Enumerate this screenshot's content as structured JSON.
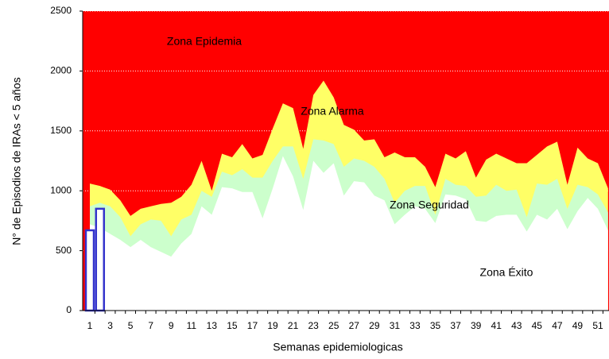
{
  "chart_data": {
    "type": "area",
    "x_label": "Semanas epidemiologicas",
    "y_label": "N° de Episodios de IRAs < 5 años",
    "annotations": [
      "Zona Epidemia",
      "Zona Alarma",
      "Zona Seguridad",
      "Zona Éxito"
    ],
    "background_color": "#ff0000",
    "categories": [
      "1",
      null,
      "3",
      null,
      "5",
      null,
      "7",
      null,
      "9",
      null,
      "11",
      null,
      "13",
      null,
      "15",
      null,
      "17",
      null,
      "19",
      null,
      "21",
      null,
      "23",
      null,
      "25",
      null,
      "27",
      null,
      "29",
      null,
      "31",
      null,
      "33",
      null,
      "35",
      null,
      "37",
      null,
      "39",
      null,
      "41",
      null,
      "43",
      null,
      "45",
      null,
      "47",
      null,
      "49",
      null,
      "51",
      null
    ],
    "series": [
      {
        "color": "#ffff66",
        "values": [
          1060,
          1040,
          1010,
          920,
          790,
          850,
          870,
          890,
          900,
          950,
          1050,
          1250,
          1000,
          1310,
          1280,
          1390,
          1270,
          1300,
          1520,
          1730,
          1690,
          1350,
          1800,
          1920,
          1780,
          1550,
          1510,
          1420,
          1430,
          1280,
          1320,
          1280,
          1280,
          1200,
          1030,
          1310,
          1270,
          1330,
          1110,
          1260,
          1310,
          1270,
          1230,
          1230,
          1300,
          1370,
          1410,
          1050,
          1360,
          1270,
          1230,
          1020
        ]
      },
      {
        "color": "#ccffcc",
        "values": [
          870,
          900,
          870,
          780,
          620,
          720,
          760,
          750,
          620,
          760,
          800,
          1000,
          950,
          1160,
          1130,
          1180,
          1110,
          1110,
          1250,
          1370,
          1370,
          1100,
          1430,
          1420,
          1390,
          1200,
          1270,
          1250,
          1200,
          1100,
          900,
          1000,
          1040,
          1040,
          800,
          1100,
          1050,
          1040,
          950,
          960,
          1050,
          1000,
          1010,
          780,
          1060,
          1050,
          1100,
          850,
          1050,
          1030,
          970,
          820
        ]
      },
      {
        "color": "#ffffff",
        "values": [
          720,
          690,
          640,
          590,
          530,
          590,
          530,
          490,
          450,
          560,
          640,
          870,
          800,
          1030,
          1020,
          990,
          990,
          770,
          1020,
          1290,
          1120,
          840,
          1250,
          1150,
          1230,
          960,
          1080,
          1070,
          960,
          920,
          720,
          800,
          870,
          850,
          730,
          970,
          960,
          930,
          750,
          740,
          790,
          800,
          800,
          660,
          800,
          760,
          850,
          680,
          830,
          940,
          850,
          670
        ]
      },
      {
        "type": "bar",
        "color": "#3333cc",
        "values": [
          670,
          850,
          null,
          null,
          null,
          null,
          null,
          null,
          null,
          null,
          null,
          null,
          null,
          null,
          null,
          null,
          null,
          null,
          null,
          null,
          null,
          null,
          null,
          null,
          null,
          null,
          null,
          null,
          null,
          null,
          null,
          null,
          null,
          null,
          null,
          null,
          null,
          null,
          null,
          null,
          null,
          null,
          null,
          null,
          null,
          null,
          null,
          null,
          null,
          null,
          null,
          null
        ]
      }
    ],
    "ylim": [
      0,
      2500
    ],
    "yticks": [
      0,
      500,
      1000,
      1500,
      2000,
      2500
    ],
    "grid": true
  }
}
